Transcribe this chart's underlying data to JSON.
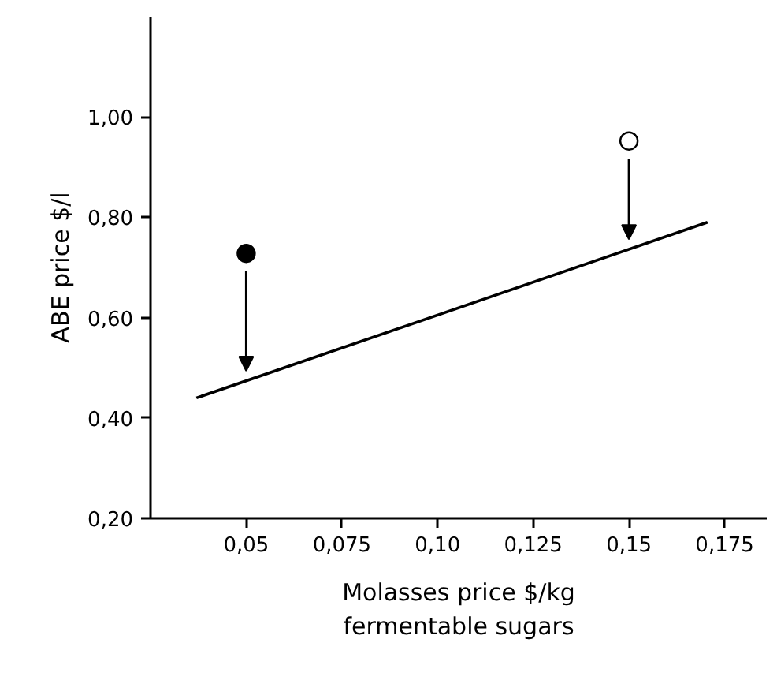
{
  "chart_data": {
    "type": "line",
    "xlabel": "Molasses price $/kg\nfermentable sugars",
    "ylabel": "ABE price $/l",
    "xlim": [
      0.025,
      0.186
    ],
    "ylim": [
      0.2,
      1.2
    ],
    "xticks": [
      {
        "value": 0.05,
        "label": "0,05"
      },
      {
        "value": 0.075,
        "label": "0,075"
      },
      {
        "value": 0.1,
        "label": "0,10"
      },
      {
        "value": 0.125,
        "label": "0,125"
      },
      {
        "value": 0.15,
        "label": "0,15"
      },
      {
        "value": 0.175,
        "label": "0,175"
      }
    ],
    "yticks": [
      {
        "value": 0.2,
        "label": "0,20"
      },
      {
        "value": 0.4,
        "label": "0,40"
      },
      {
        "value": 0.6,
        "label": "0,60"
      },
      {
        "value": 0.8,
        "label": "0,80"
      },
      {
        "value": 1.0,
        "label": "1,00"
      }
    ],
    "grid": false,
    "line_style": "solid",
    "series": [
      {
        "color": "#000000",
        "x": [
          0.037,
          0.1705
        ],
        "values": [
          0.44,
          0.79
        ],
        "marker": "none"
      },
      {
        "type": "scatter",
        "color": "#000000",
        "x": [
          0.05
        ],
        "values": [
          0.728
        ],
        "marker": "circle"
      },
      {
        "type": "scatter",
        "color": "#ffffff",
        "x": [
          0.15
        ],
        "values": [
          0.952
        ],
        "marker": "circle"
      }
    ]
  }
}
